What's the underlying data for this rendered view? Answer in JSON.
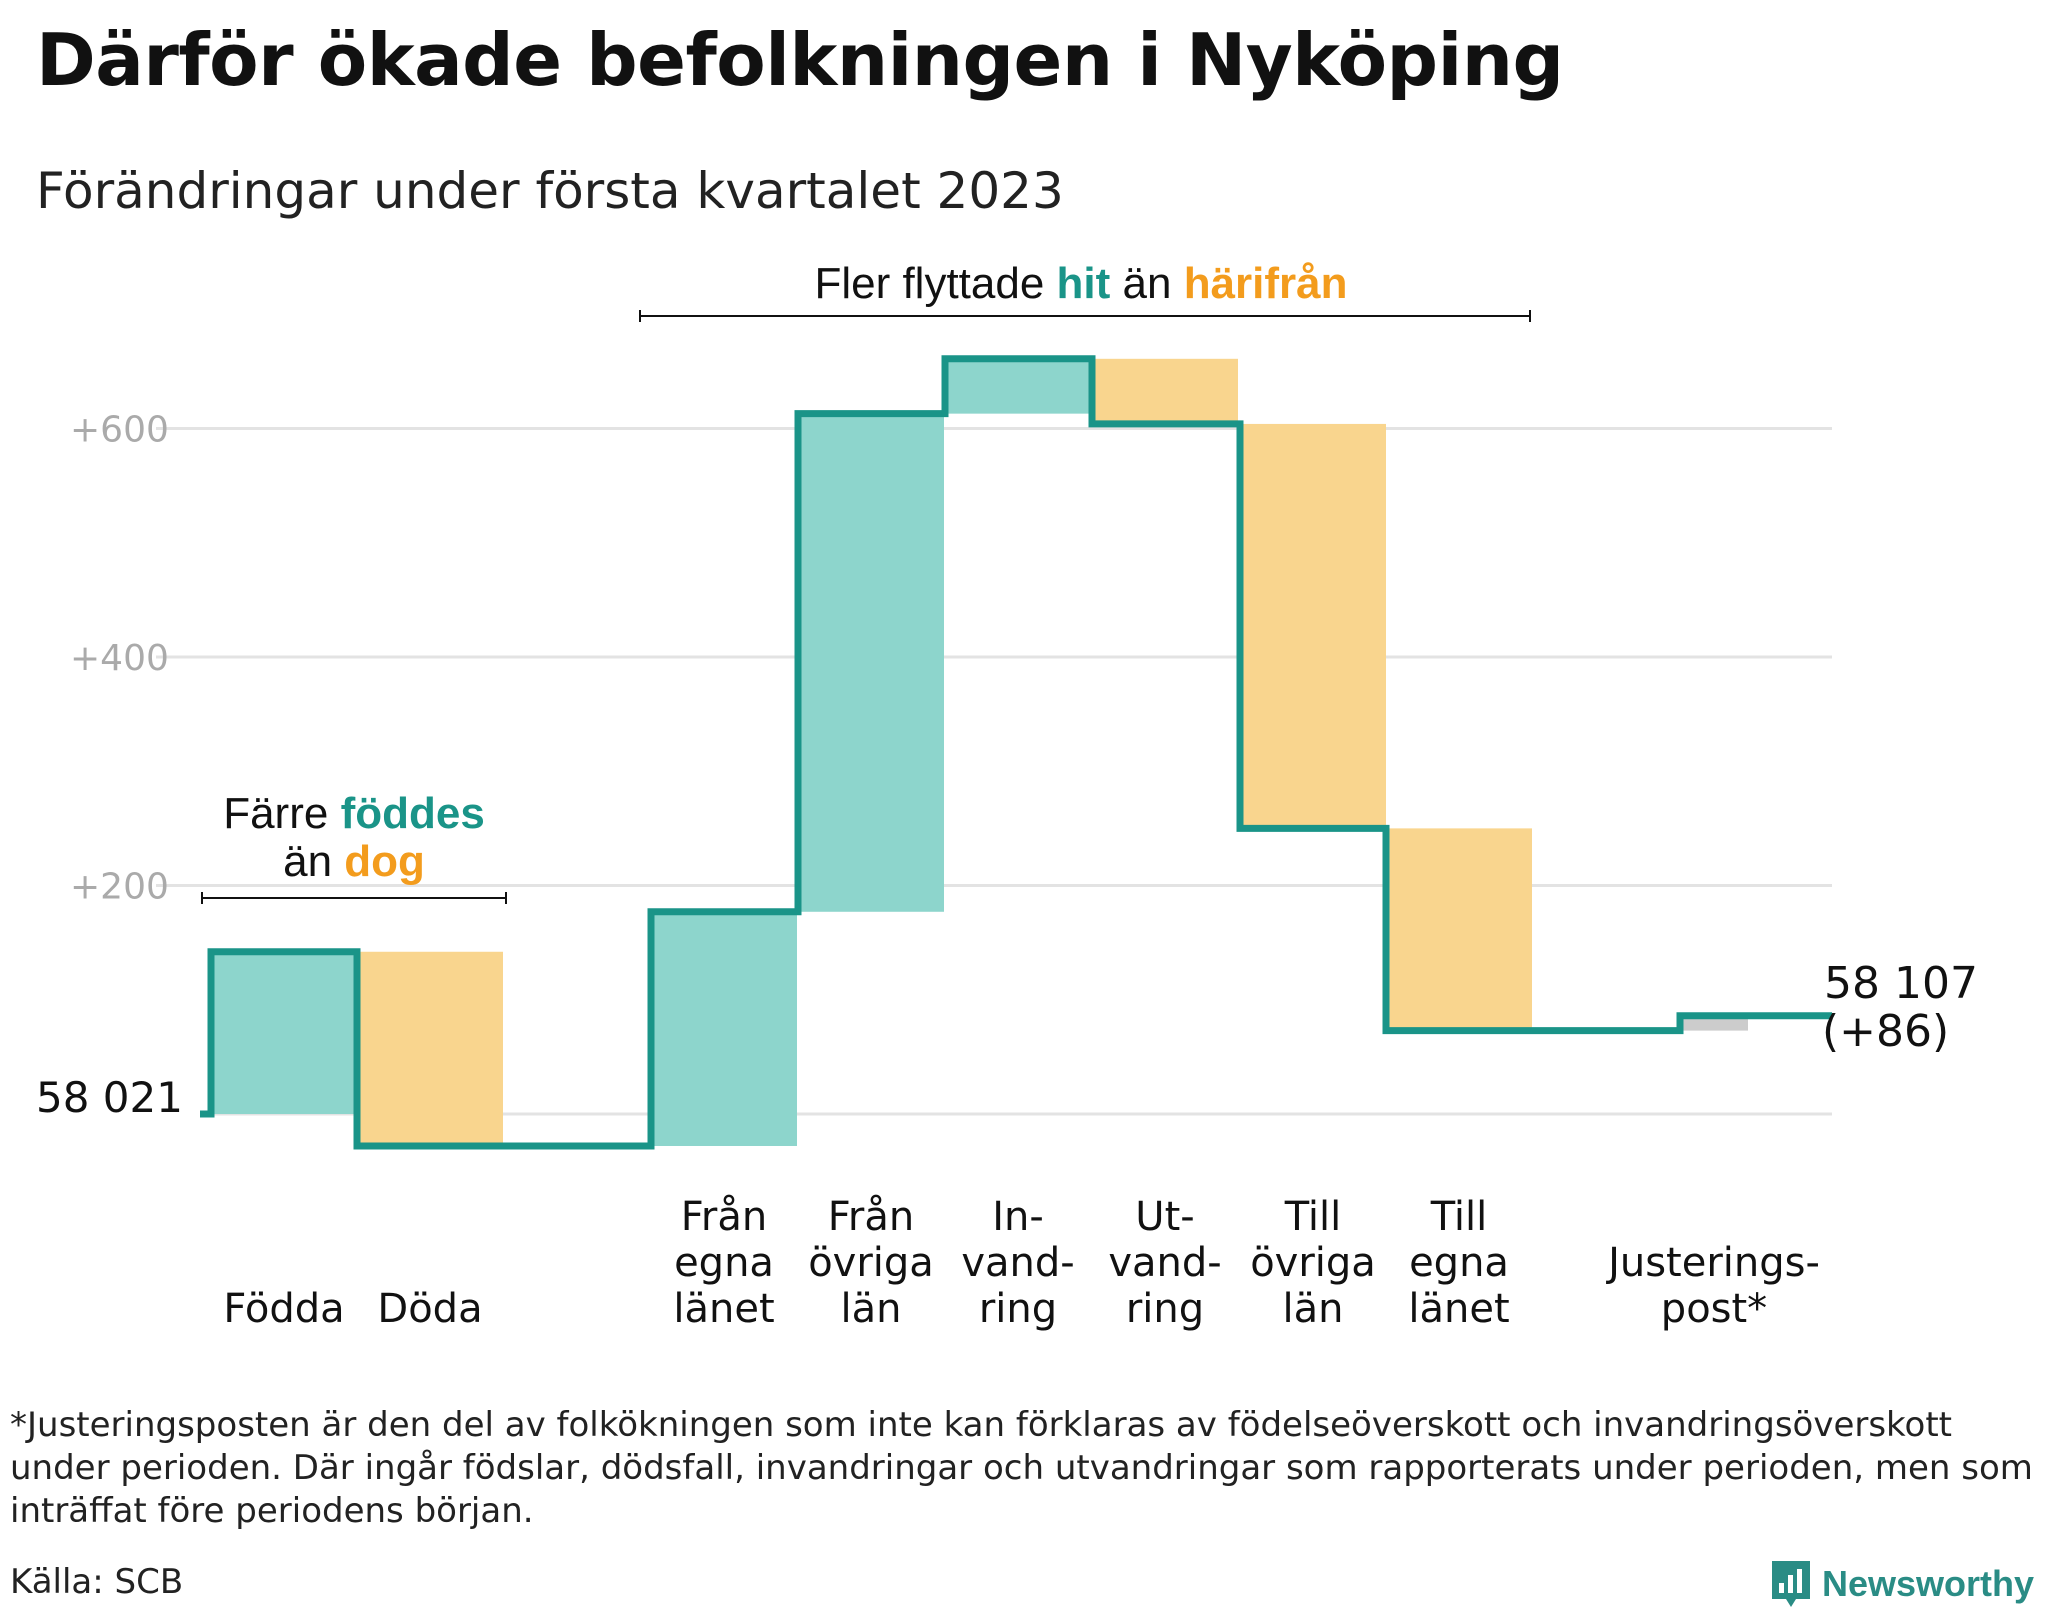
{
  "title": "Därför ökade befolkningen i Nyköping",
  "subtitle": "Förändringar under första kvartalet 2023",
  "colors": {
    "increase": "#8dd5cc",
    "decrease": "#f9d58e",
    "adjustment": "#cccccc",
    "line": "#1a9488",
    "teal_text": "#1a9488",
    "orange_text": "#f39c1d",
    "grid": "#e3e3e3",
    "tick_text": "#aaaaaa"
  },
  "annotations": {
    "births": {
      "line1_prefix": "Färre ",
      "line1_highlight": "föddes",
      "line2_prefix": "än ",
      "line2_highlight": "dog"
    },
    "migration": {
      "prefix": "Fler flyttade ",
      "highlight1": "hit",
      "middle": " än ",
      "highlight2": "härifrån"
    }
  },
  "start_label": "58 021",
  "end_label_line1": "58 107",
  "end_label_line2": "(+86)",
  "footnote": "*Justeringsposten är den del av folkökningen som inte kan förklaras av födelseöverskott och invandringsöverskott under perioden. Där ingår födslar, dödsfall, invandringar och utvandringar som rapporterats under perioden, men som inträffat före periodens början.",
  "source": "Källa: SCB",
  "brand": "Newsworthy",
  "chart_data": {
    "type": "waterfall",
    "title": "Därför ökade befolkningen i Nyköping",
    "subtitle": "Förändringar under första kvartalet 2023",
    "baseline": 58021,
    "baseline_label": "58 021",
    "ylim": [
      -45,
      700
    ],
    "y_ticks": [
      {
        "value": 200,
        "label": "+200"
      },
      {
        "value": 400,
        "label": "+400"
      },
      {
        "value": 600,
        "label": "+600"
      }
    ],
    "grid": true,
    "categories": [
      {
        "label": [
          "Födda"
        ],
        "value": 142,
        "kind": "increase"
      },
      {
        "label": [
          "Döda"
        ],
        "value": -170,
        "kind": "decrease"
      },
      {
        "label": [
          "Från",
          "egna",
          "länet"
        ],
        "value": 205,
        "kind": "increase"
      },
      {
        "label": [
          "Från",
          "övriga",
          "län"
        ],
        "value": 436,
        "kind": "increase"
      },
      {
        "label": [
          "In-",
          "vand-",
          "ring"
        ],
        "value": 48,
        "kind": "increase"
      },
      {
        "label": [
          "Ut-",
          "vand-",
          "ring"
        ],
        "value": -57,
        "kind": "decrease"
      },
      {
        "label": [
          "Till",
          "övriga",
          "län"
        ],
        "value": -354,
        "kind": "decrease"
      },
      {
        "label": [
          "Till",
          "egna",
          "länet"
        ],
        "value": -177,
        "kind": "decrease"
      },
      {
        "label": [
          "Justerings-",
          "post*"
        ],
        "value": 13,
        "kind": "adjustment"
      }
    ],
    "end_value": 58107,
    "end_label": [
      "58 107",
      "(+86)"
    ]
  }
}
